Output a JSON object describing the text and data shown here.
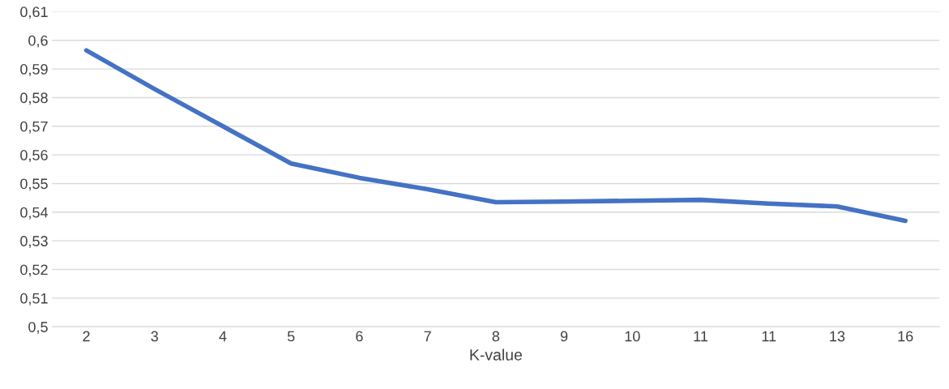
{
  "chart_data": {
    "type": "line",
    "xlabel": "K-value",
    "categories": [
      "2",
      "3",
      "4",
      "5",
      "6",
      "7",
      "8",
      "9",
      "10",
      "11",
      "11",
      "13",
      "16"
    ],
    "series": [
      {
        "color": "#4472c4",
        "values": [
          0.5965,
          0.583,
          0.57,
          0.557,
          0.552,
          0.548,
          0.5435,
          0.5437,
          0.544,
          0.5443,
          0.543,
          0.542,
          0.537
        ]
      }
    ],
    "ylim": [
      0.5,
      0.61
    ],
    "yticks": [
      {
        "value": 0.5,
        "label": "0,5"
      },
      {
        "value": 0.51,
        "label": "0,51"
      },
      {
        "value": 0.52,
        "label": "0,52"
      },
      {
        "value": 0.53,
        "label": "0,53"
      },
      {
        "value": 0.54,
        "label": "0,54"
      },
      {
        "value": 0.55,
        "label": "0,55"
      },
      {
        "value": 0.56,
        "label": "0,56"
      },
      {
        "value": 0.57,
        "label": "0,57"
      },
      {
        "value": 0.58,
        "label": "0,58"
      },
      {
        "value": 0.59,
        "label": "0,59"
      },
      {
        "value": 0.6,
        "label": "0,6"
      },
      {
        "value": 0.61,
        "label": "0,61"
      }
    ],
    "grid": "y",
    "marker": "none",
    "line_style": "solid"
  }
}
